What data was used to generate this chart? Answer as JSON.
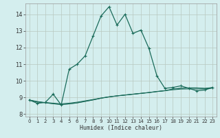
{
  "xlabel": "Humidex (Indice chaleur)",
  "bg_color": "#d4eeee",
  "grid_color": "#b8c8c0",
  "line_color": "#1a6b5a",
  "xlim": [
    -0.5,
    23.5
  ],
  "ylim": [
    7.85,
    14.65
  ],
  "xticks": [
    0,
    1,
    2,
    3,
    4,
    5,
    6,
    7,
    8,
    9,
    10,
    11,
    12,
    13,
    14,
    15,
    16,
    17,
    18,
    19,
    20,
    21,
    22,
    23
  ],
  "yticks": [
    8,
    9,
    10,
    11,
    12,
    13,
    14
  ],
  "main_x": [
    0,
    1,
    2,
    3,
    4,
    5,
    6,
    7,
    8,
    9,
    10,
    11,
    12,
    13,
    14,
    15,
    16,
    17,
    18,
    19,
    20,
    21,
    22,
    23
  ],
  "main_y": [
    8.85,
    8.65,
    8.7,
    9.2,
    8.55,
    10.7,
    11.0,
    11.5,
    12.7,
    13.9,
    14.45,
    13.35,
    14.0,
    12.85,
    13.05,
    11.95,
    10.3,
    9.55,
    9.6,
    9.7,
    9.55,
    9.4,
    9.45,
    9.6
  ],
  "flat1_x": [
    0,
    1,
    2,
    3,
    4,
    5,
    6,
    7,
    8,
    9,
    10,
    11,
    12,
    13,
    14,
    15,
    16,
    17,
    18,
    19,
    20,
    21,
    22,
    23
  ],
  "flat1_y": [
    8.85,
    8.72,
    8.7,
    8.66,
    8.62,
    8.66,
    8.72,
    8.8,
    8.88,
    8.97,
    9.04,
    9.1,
    9.15,
    9.2,
    9.25,
    9.3,
    9.36,
    9.41,
    9.46,
    9.5,
    9.51,
    9.51,
    9.51,
    9.56
  ],
  "flat2_x": [
    0,
    1,
    2,
    3,
    4,
    5,
    6,
    7,
    8,
    9,
    10,
    11,
    12,
    13,
    14,
    15,
    16,
    17,
    18,
    19,
    20,
    21,
    22,
    23
  ],
  "flat2_y": [
    8.85,
    8.74,
    8.68,
    8.62,
    8.57,
    8.61,
    8.67,
    8.76,
    8.85,
    8.95,
    9.03,
    9.09,
    9.14,
    9.19,
    9.24,
    9.29,
    9.35,
    9.4,
    9.5,
    9.55,
    9.57,
    9.57,
    9.54,
    9.59
  ],
  "flat3_x": [
    0,
    1,
    2,
    3,
    4,
    5,
    6,
    7,
    8,
    9,
    10,
    11,
    12,
    13,
    14,
    15,
    16,
    17,
    18,
    19,
    20,
    21,
    22,
    23
  ],
  "flat3_y": [
    8.85,
    8.76,
    8.69,
    8.63,
    8.59,
    8.62,
    8.68,
    8.77,
    8.86,
    8.96,
    9.04,
    9.1,
    9.15,
    9.2,
    9.25,
    9.3,
    9.36,
    9.41,
    9.51,
    9.56,
    9.58,
    9.58,
    9.55,
    9.6
  ]
}
